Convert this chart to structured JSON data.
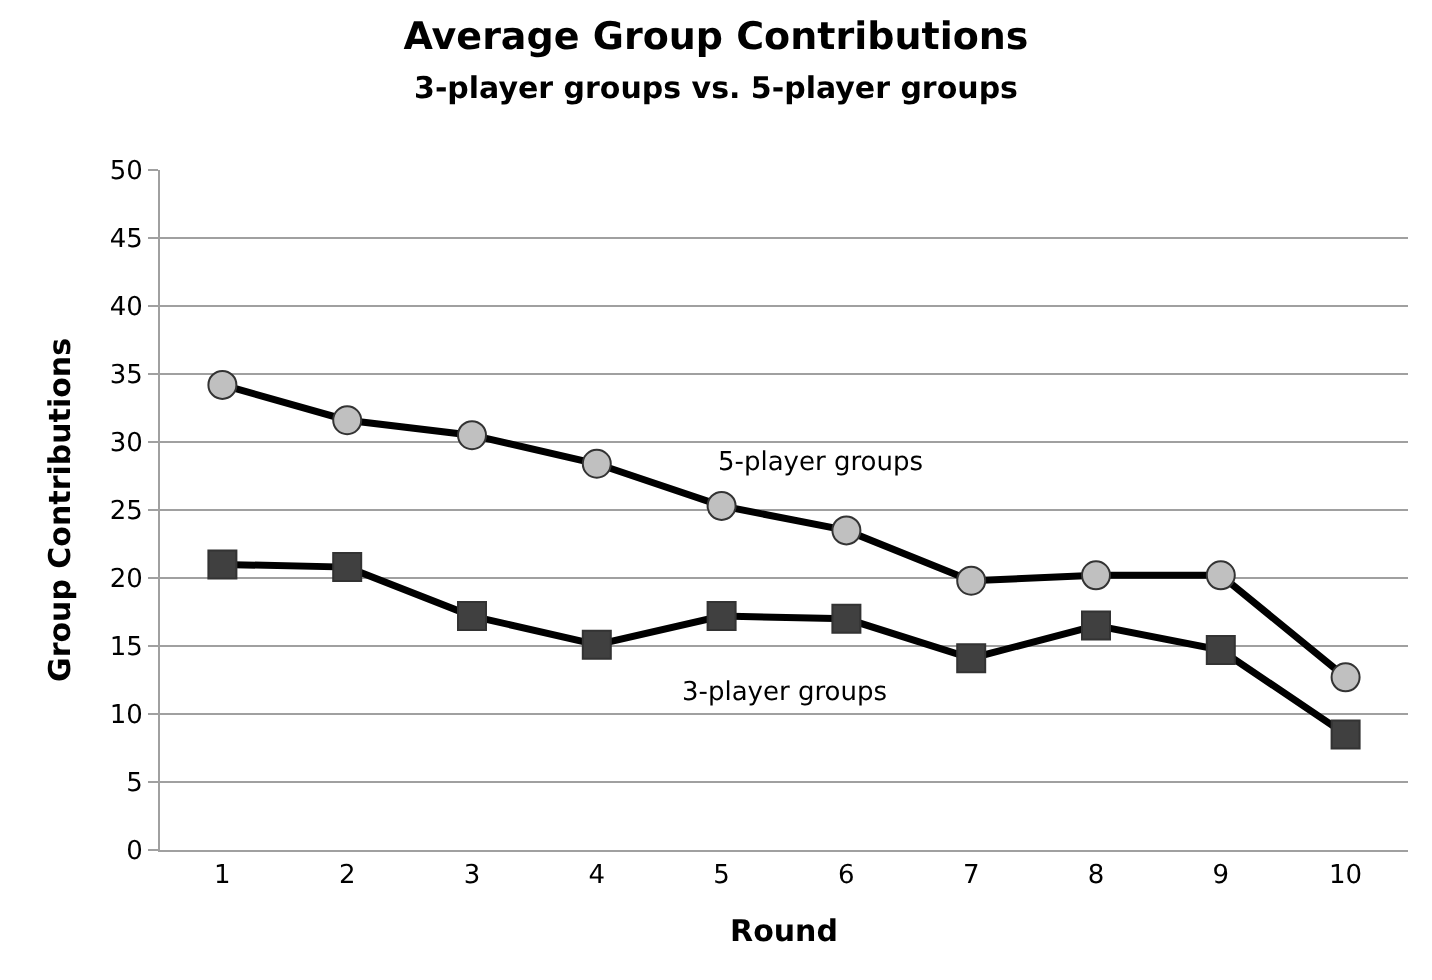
{
  "chart_data": {
    "type": "line",
    "title": "Average Group Contributions",
    "subtitle": "3-player groups vs. 5-player groups",
    "xlabel": "Round",
    "ylabel": "Group Contributions",
    "categories": [
      "1",
      "2",
      "3",
      "4",
      "5",
      "6",
      "7",
      "8",
      "9",
      "10"
    ],
    "series": [
      {
        "name": "5-player groups",
        "color": "#c0c0c0",
        "marker": "circle",
        "values": [
          34.2,
          31.6,
          30.5,
          28.4,
          25.3,
          23.5,
          19.8,
          20.2,
          20.2,
          12.7
        ]
      },
      {
        "name": "3-player groups",
        "color": "#404040",
        "marker": "square",
        "values": [
          21.0,
          20.8,
          17.2,
          15.1,
          17.2,
          17.0,
          14.1,
          16.5,
          14.7,
          8.5
        ]
      }
    ],
    "ylim": [
      0,
      50
    ],
    "yticks": [
      0,
      5,
      10,
      15,
      20,
      25,
      30,
      35,
      40,
      45,
      50
    ],
    "grid": "y",
    "legend": false,
    "line_style": "solid"
  }
}
